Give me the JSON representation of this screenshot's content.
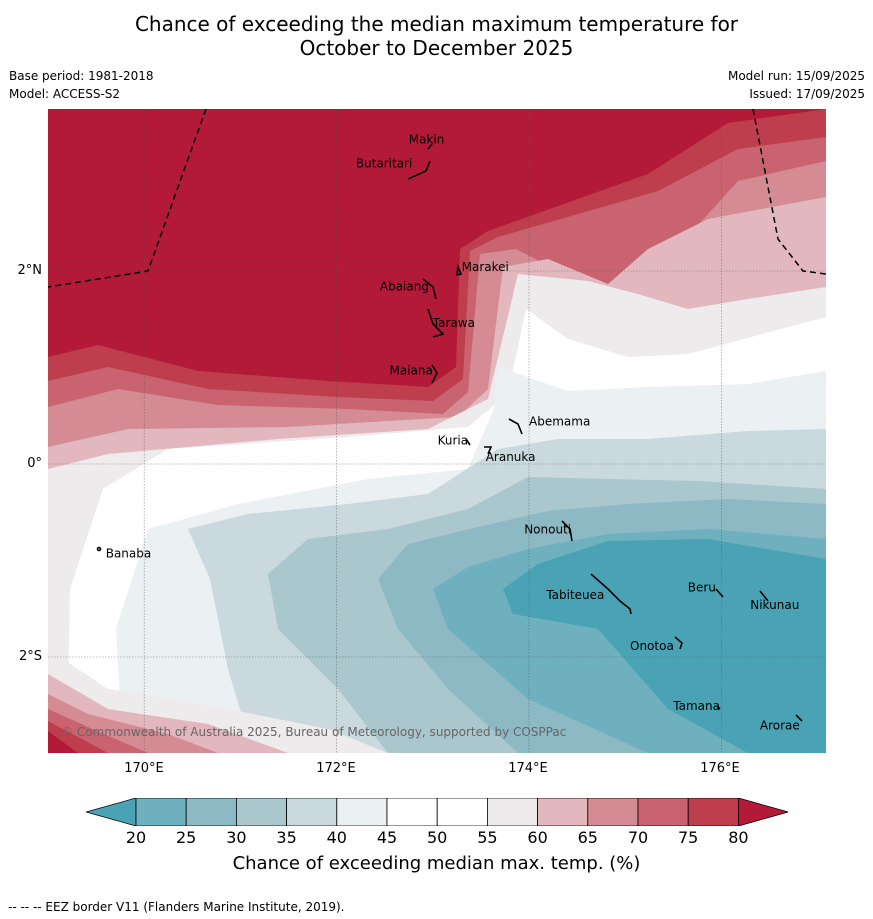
{
  "title": {
    "line1": "Chance of exceeding the median maximum temperature for",
    "line2": "October to December 2025"
  },
  "meta": {
    "base_period": "Base period: 1981-2018",
    "model": "Model: ACCESS-S2",
    "model_run": "Model run: 15/09/2025",
    "issued": "Issued: 17/09/2025"
  },
  "map": {
    "lat_labels": [
      "2°N",
      "0°",
      "2°S"
    ],
    "lon_labels": [
      "170°E",
      "172°E",
      "174°E",
      "176°E"
    ],
    "copyright": "© Commonwealth of Australia 2025, Bureau of Meteorology, supported by COSPPac",
    "places": [
      {
        "name": "Makin",
        "lon": 172.75,
        "lat": 3.32
      },
      {
        "name": "Butaritari",
        "lon": 172.2,
        "lat": 3.07
      },
      {
        "name": "Marakei",
        "lon": 173.3,
        "lat": 2.0
      },
      {
        "name": "Abaiang",
        "lon": 172.45,
        "lat": 1.8
      },
      {
        "name": "Tarawa",
        "lon": 173.0,
        "lat": 1.42
      },
      {
        "name": "Maiana",
        "lon": 172.55,
        "lat": 0.93
      },
      {
        "name": "Abemama",
        "lon": 174.0,
        "lat": 0.4
      },
      {
        "name": "Kuria",
        "lon": 173.05,
        "lat": 0.2
      },
      {
        "name": "Aranuka",
        "lon": 173.55,
        "lat": 0.03
      },
      {
        "name": "Banaba",
        "lon": 169.6,
        "lat": -0.97
      },
      {
        "name": "Nonouti",
        "lon": 173.95,
        "lat": -0.72
      },
      {
        "name": "Tabiteuea",
        "lon": 174.18,
        "lat": -1.4
      },
      {
        "name": "Beru",
        "lon": 175.65,
        "lat": -1.32
      },
      {
        "name": "Nikunau",
        "lon": 176.3,
        "lat": -1.5
      },
      {
        "name": "Onotoa",
        "lon": 175.05,
        "lat": -1.93
      },
      {
        "name": "Tamana",
        "lon": 175.5,
        "lat": -2.55
      },
      {
        "name": "Arorae",
        "lon": 176.4,
        "lat": -2.75
      }
    ]
  },
  "colorbar": {
    "ticks": [
      "20",
      "25",
      "30",
      "35",
      "40",
      "45",
      "50",
      "55",
      "60",
      "65",
      "70",
      "75",
      "80"
    ],
    "colors": [
      "#4aa3b4",
      "#6eb0bd",
      "#8db9c4",
      "#a9c7cc",
      "#cad9dd",
      "#ebf0f2",
      "#ffffff",
      "#ffffff",
      "#eeebec",
      "#e2b8be",
      "#d48b94",
      "#c9636f",
      "#be3e4d",
      "#b21a38"
    ],
    "label": "Chance of exceeding median max. temp. (%)"
  },
  "footnote": "--  --  -- EEZ border V11 (Flanders Marine Institute, 2019)."
}
